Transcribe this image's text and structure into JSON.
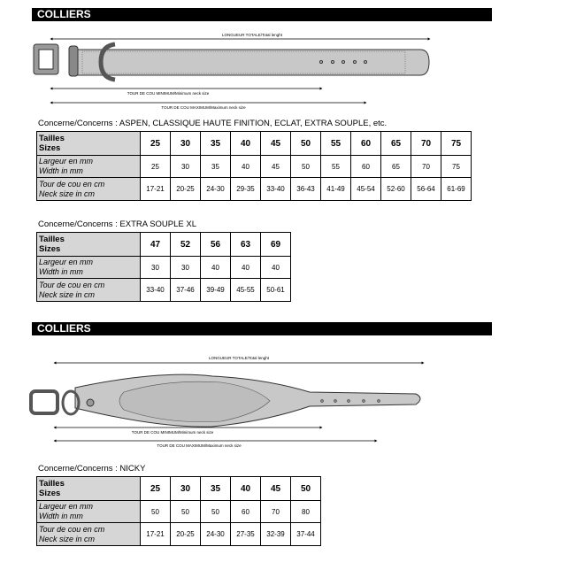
{
  "sections": [
    {
      "title": "COLLIERS",
      "diagram": {
        "total_length": "LONGUEUR TOTALE/Total lenght",
        "min_neck": "TOUR DE COU MINIMUM/Minimum neck size",
        "max_neck": "TOUR DE COU MAXIMUM/Maximum neck size"
      },
      "tables": [
        {
          "concerns": "Concerne/Concerns : ASPEN, CLASSIQUE HAUTE FINITION, ECLAT, EXTRA SOUPLE, etc.",
          "rows": [
            {
              "label": [
                "Tailles",
                "Sizes"
              ],
              "values": [
                "25",
                "30",
                "35",
                "40",
                "45",
                "50",
                "55",
                "60",
                "65",
                "70",
                "75"
              ]
            },
            {
              "label": [
                "Largeur en mm",
                "Width in mm"
              ],
              "values": [
                "25",
                "30",
                "35",
                "40",
                "45",
                "50",
                "55",
                "60",
                "65",
                "70",
                "75"
              ]
            },
            {
              "label": [
                "Tour de cou en cm",
                "Neck size in cm"
              ],
              "values": [
                "17-21",
                "20-25",
                "24-30",
                "29-35",
                "33-40",
                "36-43",
                "41-49",
                "45-54",
                "52-60",
                "56-64",
                "61-69"
              ]
            }
          ]
        },
        {
          "concerns": "Concerne/Concerns : EXTRA SOUPLE XL",
          "rows": [
            {
              "label": [
                "Tailles",
                "Sizes"
              ],
              "values": [
                "47",
                "52",
                "56",
                "63",
                "69"
              ]
            },
            {
              "label": [
                "Largeur en mm",
                "Width in mm"
              ],
              "values": [
                "30",
                "30",
                "40",
                "40",
                "40"
              ]
            },
            {
              "label": [
                "Tour de cou en cm",
                "Neck size in cm"
              ],
              "values": [
                "33-40",
                "37-46",
                "39-49",
                "45-55",
                "50-61"
              ]
            }
          ]
        }
      ]
    },
    {
      "title": "COLLIERS",
      "diagram": {
        "total_length": "LONGUEUR TOTALE/Total lenght",
        "min_neck": "TOUR DE COU MINIMUM/Minimum neck size",
        "max_neck": "TOUR DE COU MAXIMUM/Maximum neck size"
      },
      "tables": [
        {
          "concerns": "Concerne/Concerns : NICKY",
          "rows": [
            {
              "label": [
                "Tailles",
                "Sizes"
              ],
              "values": [
                "25",
                "30",
                "35",
                "40",
                "45",
                "50"
              ]
            },
            {
              "label": [
                "Largeur en mm",
                "Width in mm"
              ],
              "values": [
                "50",
                "50",
                "50",
                "60",
                "70",
                "80"
              ]
            },
            {
              "label": [
                "Tour de cou en cm",
                "Neck size in cm"
              ],
              "values": [
                "17-21",
                "20-25",
                "24-30",
                "27-35",
                "32-39",
                "37-44"
              ]
            }
          ]
        }
      ]
    }
  ]
}
